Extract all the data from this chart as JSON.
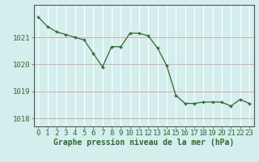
{
  "x": [
    0,
    1,
    2,
    3,
    4,
    5,
    6,
    7,
    8,
    9,
    10,
    11,
    12,
    13,
    14,
    15,
    16,
    17,
    18,
    19,
    20,
    21,
    22,
    23
  ],
  "y": [
    1021.75,
    1021.4,
    1021.2,
    1021.1,
    1021.0,
    1020.9,
    1020.4,
    1019.9,
    1020.65,
    1020.65,
    1021.15,
    1021.15,
    1021.05,
    1020.6,
    1019.95,
    1018.85,
    1018.55,
    1018.55,
    1018.6,
    1018.6,
    1018.6,
    1018.45,
    1018.7,
    1018.55
  ],
  "line_color": "#2d6a2d",
  "marker_color": "#2d6a2d",
  "bg_color": "#d4eeee",
  "hgrid_color": "#d4a0a0",
  "vgrid_color": "#ffffff",
  "ylabel_ticks": [
    1018,
    1019,
    1020,
    1021
  ],
  "xlabel_label": "Graphe pression niveau de la mer (hPa)",
  "xlim": [
    -0.5,
    23.5
  ],
  "ylim": [
    1017.7,
    1022.2
  ],
  "label_fontsize": 7,
  "tick_fontsize": 6.5
}
